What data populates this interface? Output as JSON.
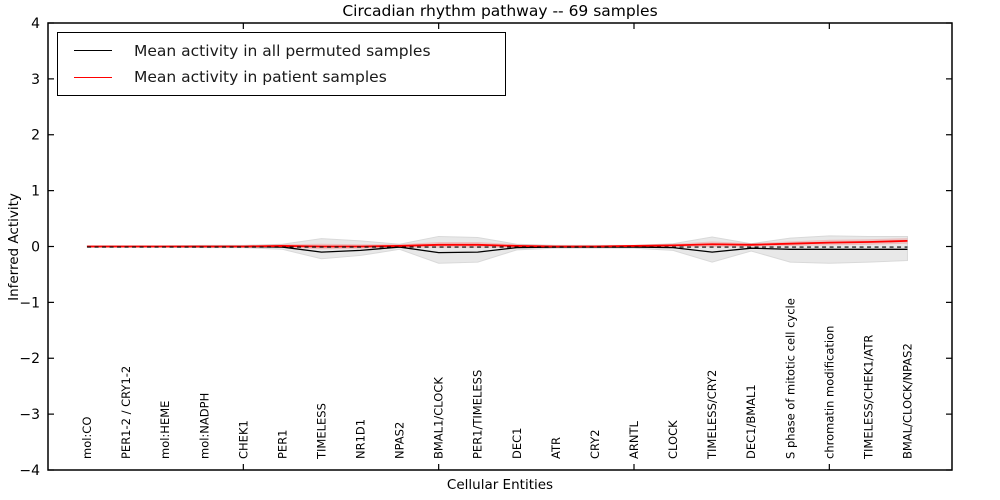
{
  "title": "Circadian rhythm pathway -- 69 samples",
  "legend": {
    "items": [
      {
        "label": "Mean activity in all permuted samples",
        "color": "#000000"
      },
      {
        "label": "Mean activity in patient samples",
        "color": "#ff0000"
      }
    ]
  },
  "chart_data": {
    "type": "line",
    "title": "Circadian rhythm pathway -- 69 samples",
    "xlabel": "Cellular Entities",
    "ylabel": "Inferred Activity",
    "ylim": [
      -4,
      4
    ],
    "yticks": [
      4,
      3,
      2,
      1,
      0,
      -1,
      -2,
      -3,
      -4
    ],
    "xticks": [
      5,
      10,
      15,
      20
    ],
    "grid": false,
    "legend_position": "upper left",
    "categories": [
      "mol:CO",
      "PER1-2 / CRY1-2",
      "mol:HEME",
      "mol:NADPH",
      "CHEK1",
      "PER1",
      "TIMELESS",
      "NR1D1",
      "NPAS2",
      "BMAL1/CLOCK",
      "PER1/TIMELESS",
      "DEC1",
      "ATR",
      "CRY2",
      "ARNTL",
      "CLOCK",
      "TIMELESS/CRY2",
      "DEC1/BMAL1",
      "S phase of mitotic cell cycle",
      "chromatin modification",
      "TIMELESS/CHEK1/ATR",
      "BMAL/CLOCK/NPAS2"
    ],
    "series": [
      {
        "name": "Mean activity in all permuted samples",
        "color": "#000000",
        "style": "solid",
        "values": [
          0.0,
          0.0,
          0.0,
          0.0,
          0.0,
          -0.01,
          -0.1,
          -0.07,
          -0.01,
          -0.11,
          -0.1,
          -0.02,
          -0.01,
          -0.01,
          -0.01,
          -0.02,
          -0.1,
          -0.03,
          -0.05,
          -0.05,
          -0.05,
          -0.05
        ]
      },
      {
        "name": "Mean activity in patient samples",
        "color": "#ff0000",
        "style": "solid",
        "values": [
          0.0,
          0.0,
          0.0,
          0.0,
          0.0,
          0.01,
          0.0,
          0.0,
          0.01,
          0.03,
          0.03,
          0.01,
          0.0,
          0.0,
          0.01,
          0.02,
          0.04,
          0.03,
          0.05,
          0.07,
          0.08,
          0.1
        ]
      }
    ],
    "bands": [
      {
        "name": "permuted-samples-range",
        "fill": "#e8e8e8",
        "edge": "#d9d9d9",
        "top": [
          0.01,
          0.01,
          0.01,
          0.02,
          0.02,
          0.04,
          0.14,
          0.1,
          0.04,
          0.18,
          0.16,
          0.04,
          0.02,
          0.02,
          0.02,
          0.05,
          0.17,
          0.05,
          0.15,
          0.19,
          0.18,
          0.18
        ],
        "bottom": [
          -0.01,
          -0.01,
          -0.01,
          -0.02,
          -0.02,
          -0.05,
          -0.22,
          -0.16,
          -0.05,
          -0.3,
          -0.28,
          -0.06,
          -0.03,
          -0.03,
          -0.03,
          -0.07,
          -0.28,
          -0.08,
          -0.28,
          -0.3,
          -0.28,
          -0.25
        ]
      },
      {
        "name": "patient-samples-range",
        "fill": "rgba(255,0,0,0.16)",
        "edge": "none",
        "top": [
          0.02,
          0.02,
          0.02,
          0.02,
          0.02,
          0.04,
          0.05,
          0.04,
          0.04,
          0.08,
          0.08,
          0.04,
          0.02,
          0.02,
          0.03,
          0.05,
          0.09,
          0.06,
          0.09,
          0.12,
          0.13,
          0.15
        ],
        "bottom": [
          -0.02,
          -0.02,
          -0.02,
          -0.02,
          -0.02,
          -0.02,
          -0.05,
          -0.04,
          -0.02,
          -0.02,
          -0.02,
          -0.02,
          -0.02,
          -0.02,
          -0.01,
          -0.01,
          -0.01,
          0.0,
          0.01,
          0.02,
          0.03,
          0.05
        ]
      }
    ],
    "zero_line": {
      "y": -0.01,
      "color": "#000000",
      "style": "dashed"
    }
  }
}
